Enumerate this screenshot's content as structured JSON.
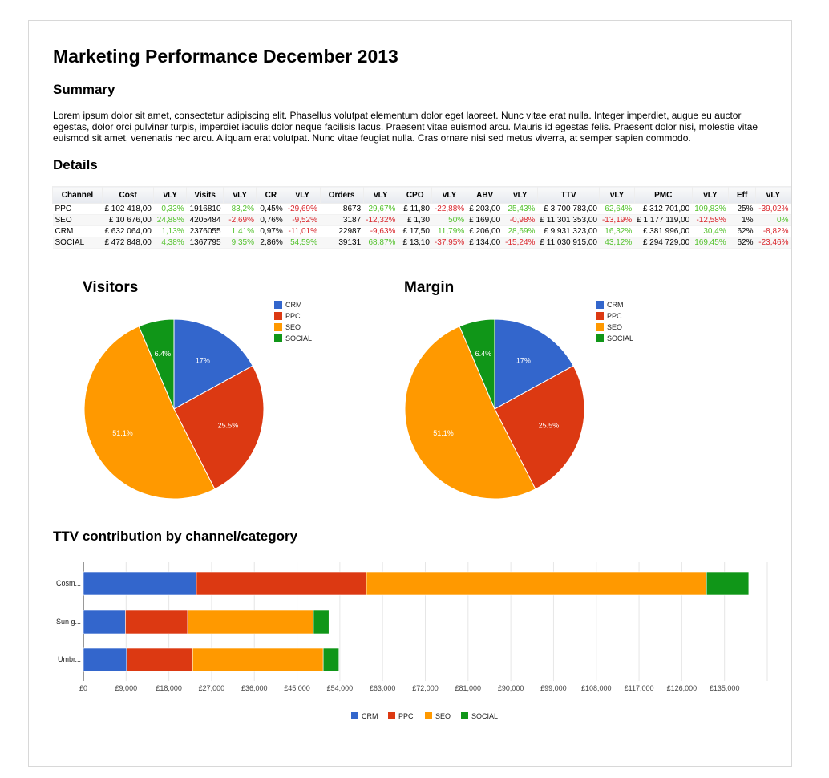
{
  "title": "Marketing Performance December 2013",
  "summary": {
    "heading": "Summary",
    "text": "Lorem ipsum dolor sit amet, consectetur adipiscing elit. Phasellus volutpat elementum dolor eget laoreet. Nunc vitae erat nulla. Integer imperdiet, augue eu auctor egestas, dolor orci pulvinar turpis, imperdiet iaculis dolor neque facilisis lacus. Praesent vitae euismod arcu. Mauris id egestas felis. Praesent dolor nisi, molestie vitae euismod sit amet, venenatis nec arcu. Aliquam erat volutpat. Nunc vitae feugiat nulla. Cras ornare nisi sed metus viverra, at semper sapien commodo."
  },
  "details": {
    "heading": "Details",
    "columns": [
      "Channel",
      "Cost",
      "vLY",
      "Visits",
      "vLY",
      "CR",
      "vLY",
      "Orders",
      "vLY",
      "CPO",
      "vLY",
      "ABV",
      "vLY",
      "TTV",
      "vLY",
      "PMC",
      "vLY",
      "Eff",
      "vLY"
    ],
    "rows": [
      [
        "PPC",
        "£ 102 418,00",
        "0,33%",
        "1916810",
        "83,2%",
        "0,45%",
        "-29,69%",
        "8673",
        "29,67%",
        "£ 11,80",
        "-22,88%",
        "£ 203,00",
        "25,43%",
        "£ 3 700 783,00",
        "62,64%",
        "£ 312 701,00",
        "109,83%",
        "25%",
        "-39,02%"
      ],
      [
        "SEO",
        "£ 10 676,00",
        "24,88%",
        "4205484",
        "-2,69%",
        "0,76%",
        "-9,52%",
        "3187",
        "-12,32%",
        "£ 1,30",
        "50%",
        "£ 169,00",
        "-0,98%",
        "£ 11 301 353,00",
        "-13,19%",
        "£ 1 177 119,00",
        "-12,58%",
        "1%",
        "0%"
      ],
      [
        "CRM",
        "£ 632 064,00",
        "1,13%",
        "2376055",
        "1,41%",
        "0,97%",
        "-11,01%",
        "22987",
        "-9,63%",
        "£ 17,50",
        "11,79%",
        "£ 206,00",
        "28,69%",
        "£ 9 931 323,00",
        "16,32%",
        "£ 381 996,00",
        "30,4%",
        "62%",
        "-8,82%"
      ],
      [
        "SOCIAL",
        "£ 472 848,00",
        "4,38%",
        "1367795",
        "9,35%",
        "2,86%",
        "54,59%",
        "39131",
        "68,87%",
        "£ 13,10",
        "-37,95%",
        "£ 134,00",
        "-15,24%",
        "£ 11 030 915,00",
        "43,12%",
        "£ 294 729,00",
        "169,45%",
        "62%",
        "-23,46%"
      ]
    ]
  },
  "colors": {
    "CRM": "#3366cc",
    "PPC": "#dc3912",
    "SEO": "#ff9900",
    "SOCIAL": "#109618",
    "positive": "#55c22e",
    "negative": "#d9282e"
  },
  "chart_data": [
    {
      "type": "pie",
      "title": "Visitors",
      "categories": [
        "CRM",
        "PPC",
        "SEO",
        "SOCIAL"
      ],
      "values": [
        17,
        25.5,
        51.1,
        6.4
      ],
      "labels": [
        "17%",
        "25.5%",
        "51.1%",
        "6.4%"
      ],
      "legend": "right"
    },
    {
      "type": "pie",
      "title": "Margin",
      "categories": [
        "CRM",
        "PPC",
        "SEO",
        "SOCIAL"
      ],
      "values": [
        17,
        25.5,
        51.1,
        6.4
      ],
      "labels": [
        "17%",
        "25.5%",
        "51.1%",
        "6.4%"
      ],
      "legend": "right"
    },
    {
      "type": "bar",
      "orientation": "horizontal",
      "stacked": true,
      "title": "TTV contribution by channel/category",
      "categories": [
        "Cosm...",
        "Sun g...",
        "Umbr..."
      ],
      "series": [
        {
          "name": "CRM",
          "values": [
            23800,
            8850,
            9100
          ]
        },
        {
          "name": "PPC",
          "values": [
            35800,
            13100,
            13900
          ]
        },
        {
          "name": "SEO",
          "values": [
            71600,
            26500,
            27500
          ]
        },
        {
          "name": "SOCIAL",
          "values": [
            8900,
            3250,
            3300
          ]
        }
      ],
      "xlim": [
        0,
        144000
      ],
      "xticks": [
        "£0",
        "£9,000",
        "£18,000",
        "£27,000",
        "£36,000",
        "£45,000",
        "£54,000",
        "£63,000",
        "£72,000",
        "£81,000",
        "£90,000",
        "£99,000",
        "£108,000",
        "£117,000",
        "£126,000",
        "£135,000"
      ],
      "grid": true,
      "legend": "bottom"
    }
  ]
}
